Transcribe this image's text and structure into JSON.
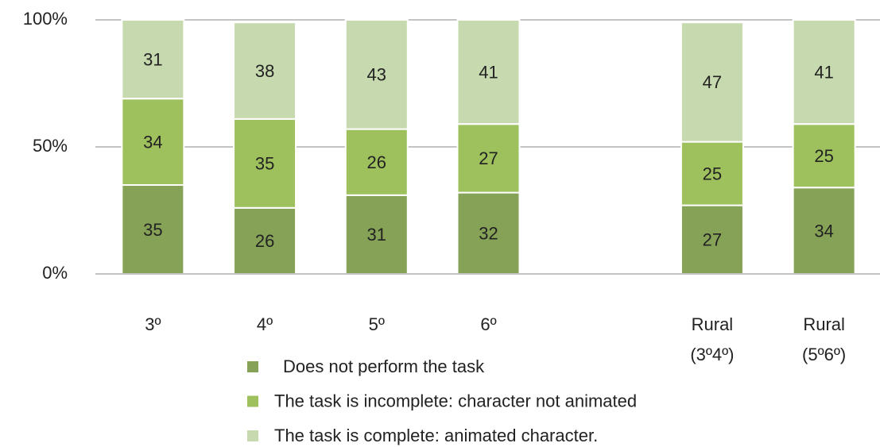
{
  "chart_data": {
    "type": "stacked_bar",
    "categories": [
      "3º",
      "4º",
      "5º",
      "6º",
      null,
      "Rural (3º4º)",
      "Rural (5º6º)"
    ],
    "series": [
      {
        "name": "Does not perform the task",
        "color": "#85a257",
        "values": [
          35,
          26,
          31,
          32,
          null,
          27,
          34
        ]
      },
      {
        "name": "The task is incomplete: character not animated",
        "color": "#9ec15e",
        "values": [
          34,
          35,
          26,
          27,
          null,
          25,
          25
        ]
      },
      {
        "name": "The task is complete: animated character.",
        "color": "#c7d9ae",
        "values": [
          31,
          38,
          43,
          41,
          null,
          47,
          41
        ]
      }
    ],
    "ylim": [
      0,
      100
    ],
    "yticks": [
      {
        "value": 0,
        "label": "0%"
      },
      {
        "value": 50,
        "label": "50%"
      },
      {
        "value": 100,
        "label": "100%"
      }
    ],
    "grid": true,
    "legend": "bottom"
  }
}
